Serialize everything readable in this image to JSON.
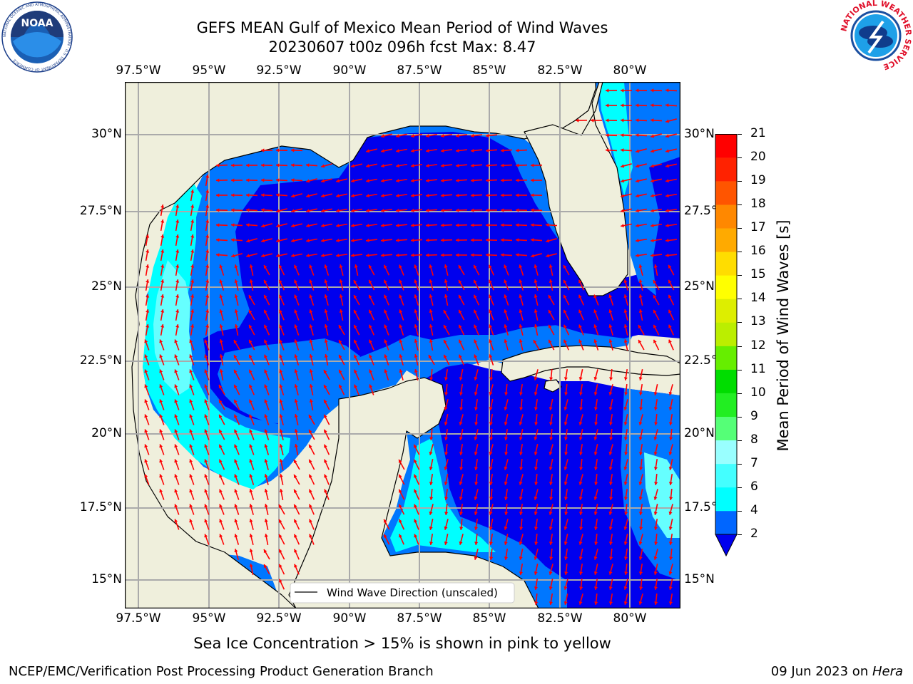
{
  "title": {
    "line1": "GEFS MEAN Gulf of Mexico Mean Period of Wind Waves",
    "line2": "20230607 t00z 096h fcst   Max: 8.47"
  },
  "axes": {
    "lon_labels": [
      "97.5°W",
      "95°W",
      "92.5°W",
      "90°W",
      "87.5°W",
      "85°W",
      "82.5°W",
      "80°W"
    ],
    "lat_labels": [
      "30°N",
      "27.5°N",
      "25°N",
      "22.5°N",
      "20°N",
      "17.5°N",
      "15°N"
    ]
  },
  "colorbar": {
    "label": "Mean Period of Wind Waves [s]",
    "ticks": [
      "2",
      "4",
      "6",
      "7",
      "8",
      "9",
      "10",
      "11",
      "12",
      "13",
      "14",
      "15",
      "16",
      "17",
      "18",
      "19",
      "20",
      "21"
    ],
    "colors": [
      "#0066ff",
      "#00ffff",
      "#44ffff",
      "#99ffff",
      "#55ff77",
      "#22ee22",
      "#00dd00",
      "#66ee00",
      "#bbee00",
      "#ddee00",
      "#ffff00",
      "#ffdd00",
      "#ffaa00",
      "#ff8800",
      "#ff5500",
      "#ff2200",
      "#ff0000"
    ],
    "under_color": "#0000ee"
  },
  "legend": {
    "label": "Wind Wave Direction (unscaled)"
  },
  "footer_note": "Sea Ice Concentration > 15% is shown in pink to yellow",
  "credits": {
    "left": "NCEP/EMC/Verification Post Processing Product Generation Branch",
    "right_date": "09 Jun 2023 on ",
    "right_host": "Hera"
  },
  "logos": {
    "noaa_text": "NOAA",
    "noaa_ring": "NATIONAL OCEANIC AND ATMOSPHERIC ADMINISTRATION · U.S. DEPARTMENT OF COMMERCE",
    "nws_ring": "NATIONAL WEATHER SERVICE"
  },
  "map_colors": {
    "land": "#efefdc",
    "deep_blue": "#0000ee",
    "medium_blue": "#0077ff",
    "cyan": "#00ffff",
    "light_cyan": "#66ffff",
    "arrow": "#ff0000",
    "grid": "#aaaaaa"
  }
}
